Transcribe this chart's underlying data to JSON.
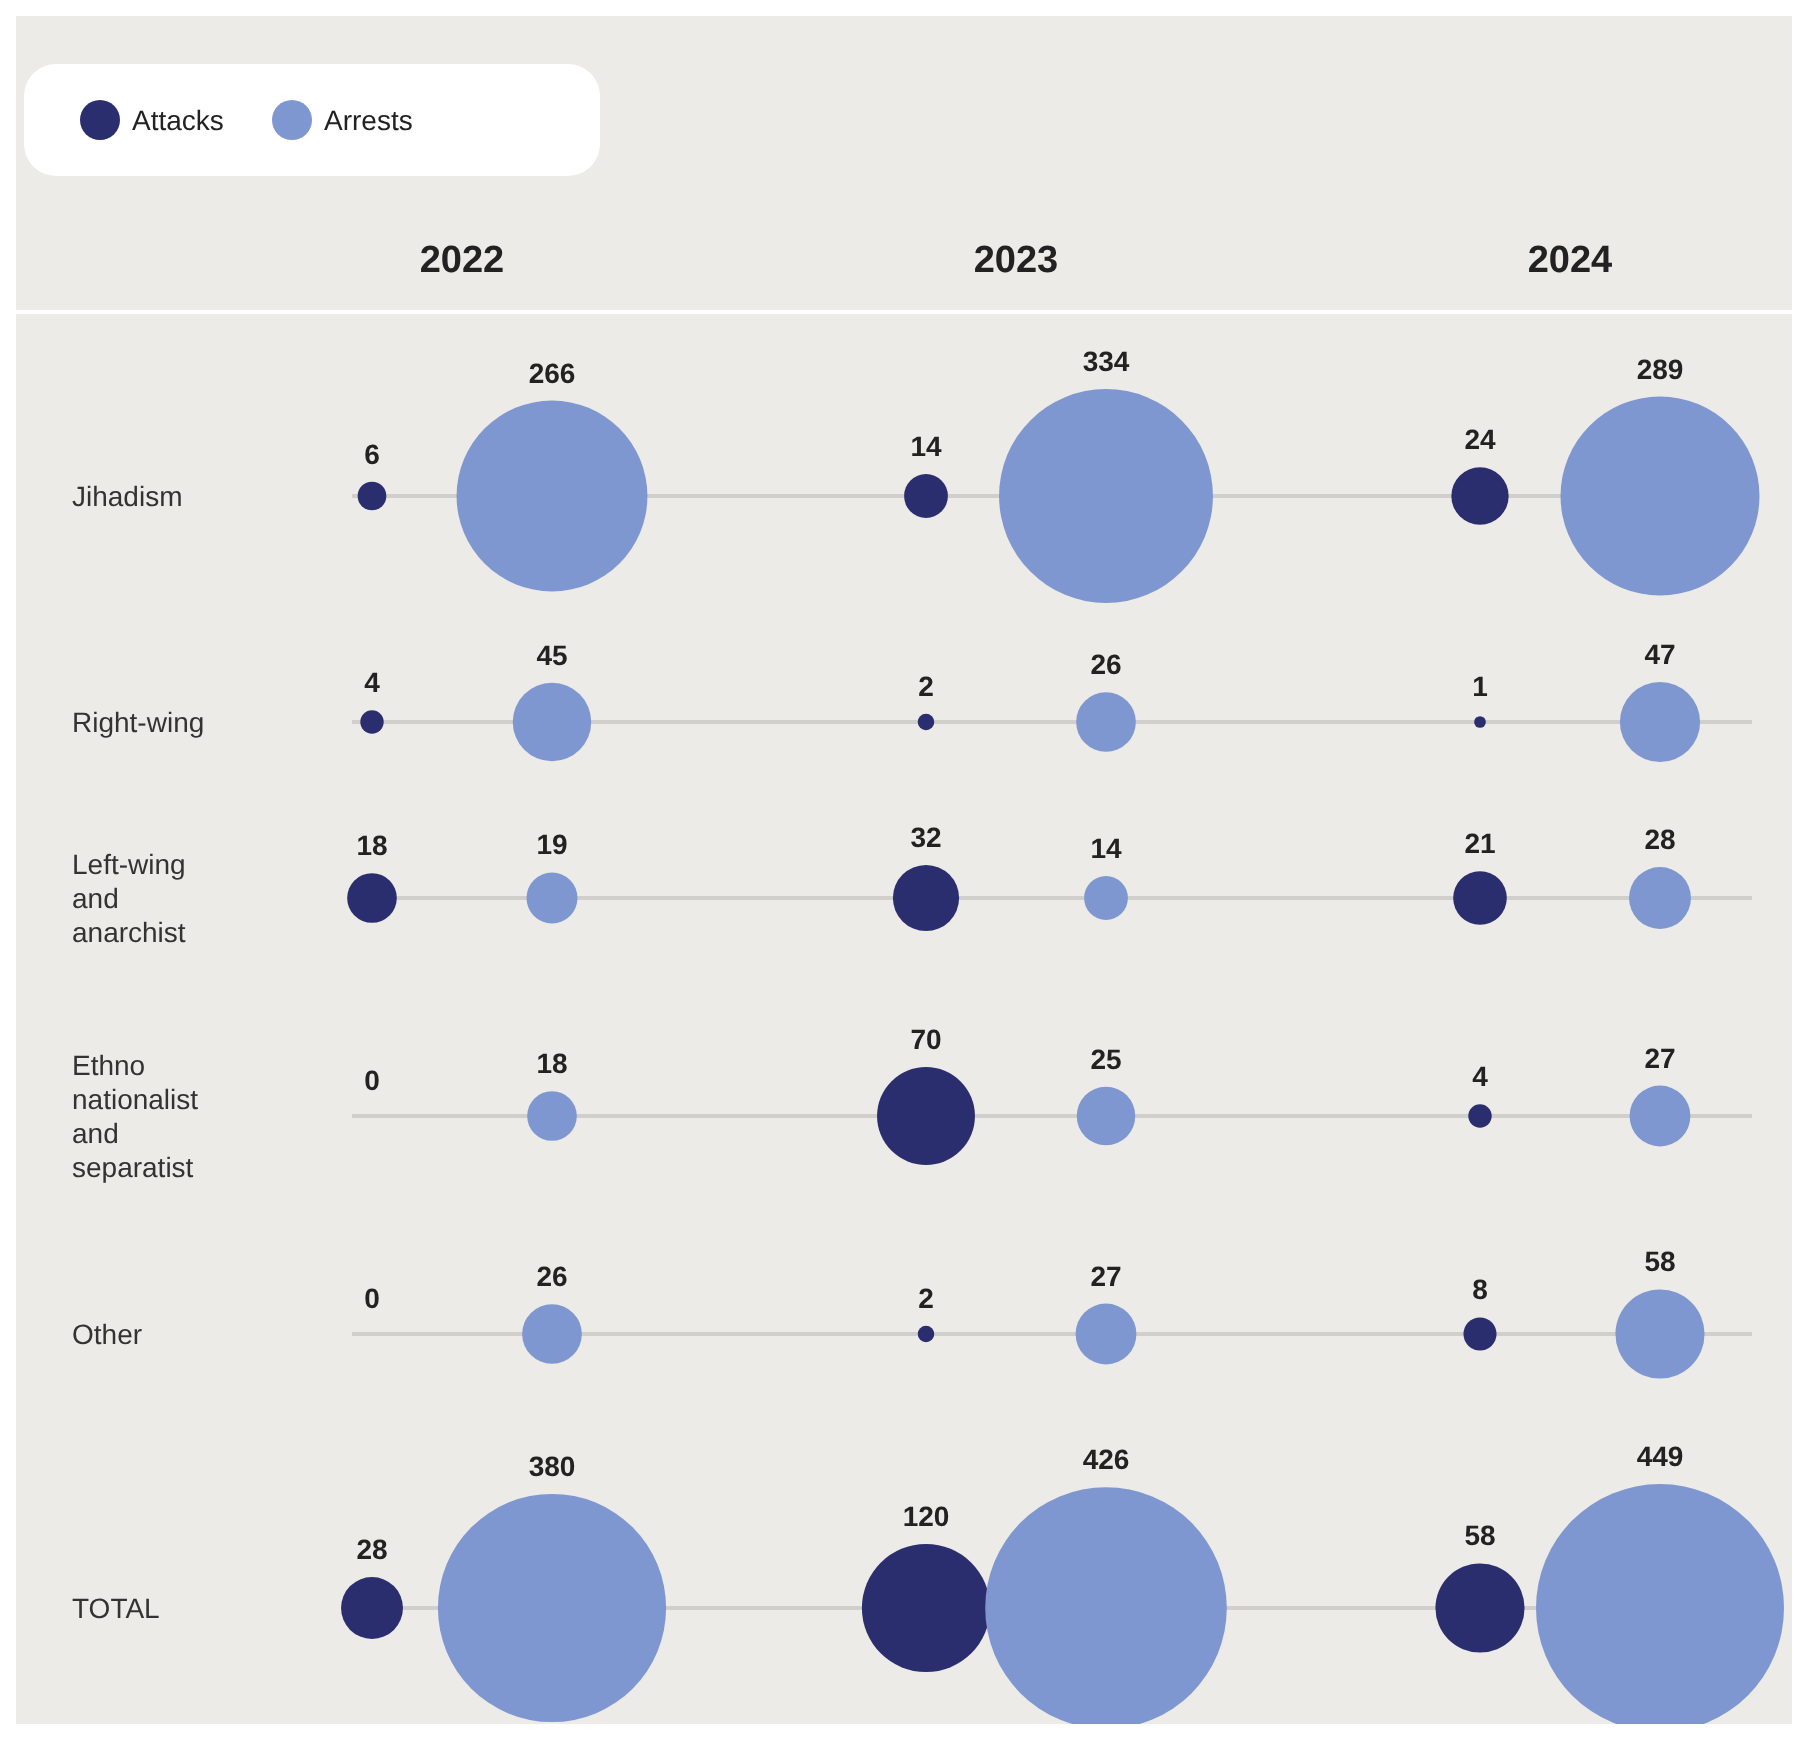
{
  "chart_data": {
    "type": "other",
    "categories": [
      "2022",
      "2023",
      "2024"
    ],
    "legend": "top left",
    "data_labels": true,
    "annotations": [
      "Jihadism",
      "Right-wing",
      "Left-wing and anarchist",
      "Ethno nationalist and separatist",
      "Other",
      "TOTAL"
    ],
    "series": [
      {
        "name": "Attacks",
        "color": "#2b2e6e",
        "values": [
          6,
          14,
          24
        ]
      },
      {
        "name": "Arrests",
        "color": "#7f97d0",
        "values": [
          266,
          334,
          289
        ]
      },
      {
        "color": "#2b2e6e",
        "values": [
          4,
          2,
          1
        ]
      },
      {
        "color": "#7f97d0",
        "values": [
          45,
          26,
          47
        ]
      },
      {
        "color": "#2b2e6e",
        "values": [
          18,
          32,
          21
        ]
      },
      {
        "color": "#7f97d0",
        "values": [
          19,
          14,
          28
        ]
      },
      {
        "color": "#2b2e6e",
        "values": [
          0,
          70,
          4
        ]
      },
      {
        "color": "#7f97d0",
        "values": [
          18,
          25,
          27
        ]
      },
      {
        "color": "#2b2e6e",
        "values": [
          0,
          2,
          8
        ]
      },
      {
        "color": "#7f97d0",
        "values": [
          26,
          27,
          58
        ]
      },
      {
        "color": "#2b2e6e",
        "values": [
          28,
          120,
          58
        ]
      },
      {
        "color": "#7f97d0",
        "values": [
          380,
          426,
          449
        ]
      }
    ]
  }
}
